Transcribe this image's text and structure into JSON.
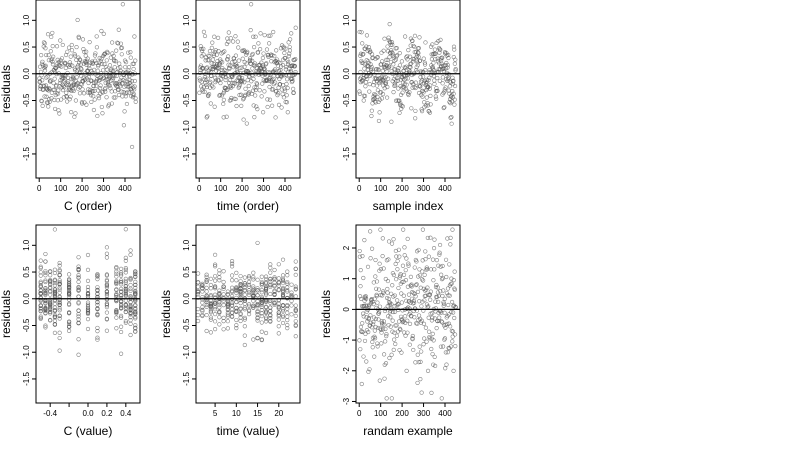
{
  "chart_data": [
    {
      "type": "scatter",
      "xlabel": "C (order)",
      "ylabel": "residuals",
      "xlim": [
        -15,
        470
      ],
      "ylim": [
        -1.95,
        1.38
      ],
      "xticks": [
        0,
        100,
        200,
        300,
        400
      ],
      "xtick_labels": [
        "0",
        "100",
        "200",
        "300",
        "400"
      ],
      "yticks": [
        1.0,
        0.5,
        0.0,
        -0.5,
        -1.0,
        -1.5
      ],
      "ytick_labels": [
        "1.0",
        "0.5",
        "0.0",
        "-0.5",
        "-1.0",
        "-1.5"
      ],
      "hline": 0,
      "marker": "open-circle",
      "n_points": 450,
      "generator": {
        "x_mode": "index",
        "x_min": 1,
        "x_max": 450,
        "y_sd": 0.32,
        "y_min": -1.85,
        "y_max": 1.3,
        "seed": 11,
        "cluster_y": false
      }
    },
    {
      "type": "scatter",
      "xlabel": "time (order)",
      "ylabel": "residuals",
      "xlim": [
        -15,
        470
      ],
      "ylim": [
        -1.95,
        1.38
      ],
      "xticks": [
        0,
        100,
        200,
        300,
        400
      ],
      "xtick_labels": [
        "0",
        "100",
        "200",
        "300",
        "400"
      ],
      "yticks": [
        1.0,
        0.5,
        0.0,
        -0.5,
        -1.0,
        -1.5
      ],
      "ytick_labels": [
        "1.0",
        "0.5",
        "0.0",
        "-0.5",
        "-1.0",
        "-1.5"
      ],
      "hline": 0,
      "marker": "open-circle",
      "n_points": 450,
      "generator": {
        "x_mode": "index",
        "x_min": 1,
        "x_max": 450,
        "y_sd": 0.32,
        "y_min": -1.85,
        "y_max": 1.3,
        "seed": 23,
        "cluster_y": false
      }
    },
    {
      "type": "scatter",
      "xlabel": "sample index",
      "ylabel": "residuals",
      "xlim": [
        -15,
        470
      ],
      "ylim": [
        -1.95,
        1.38
      ],
      "xticks": [
        0,
        100,
        200,
        300,
        400
      ],
      "xtick_labels": [
        "0",
        "100",
        "200",
        "300",
        "400"
      ],
      "yticks": [
        1.0,
        0.5,
        0.0,
        -0.5,
        -1.0,
        -1.5
      ],
      "ytick_labels": [
        "1.0",
        "0.5",
        "0.0",
        "-0.5",
        "-1.0",
        "-1.5"
      ],
      "hline": 0,
      "marker": "open-circle",
      "n_points": 450,
      "generator": {
        "x_mode": "index",
        "x_min": 1,
        "x_max": 450,
        "y_sd": 0.3,
        "y_min": -1.85,
        "y_max": 1.3,
        "seed": 37,
        "cluster_y": true
      }
    },
    {
      "type": "scatter",
      "xlabel": "C (value)",
      "ylabel": "residuals",
      "xlim": [
        -0.55,
        0.55
      ],
      "ylim": [
        -1.95,
        1.38
      ],
      "xticks": [
        -0.4,
        0.0,
        0.2,
        0.4
      ],
      "xtick_labels": [
        "-0.4",
        "0.0",
        "0.2",
        "0.4"
      ],
      "extra_xticks": [
        -0.2
      ],
      "yticks": [
        1.0,
        0.5,
        0.0,
        -0.5,
        -1.0,
        -1.5
      ],
      "ytick_labels": [
        "1.0",
        "0.5",
        "0.0",
        "-0.5",
        "-1.0",
        "-1.5"
      ],
      "hline": 0,
      "marker": "open-circle",
      "n_points": 450,
      "generator": {
        "x_mode": "discrete",
        "x_values": [
          -0.5,
          -0.45,
          -0.4,
          -0.35,
          -0.3,
          -0.2,
          -0.1,
          0.0,
          0.1,
          0.2,
          0.3,
          0.35,
          0.4,
          0.45,
          0.5
        ],
        "y_sd": 0.32,
        "y_min": -1.85,
        "y_max": 1.3,
        "seed": 41,
        "cluster_y": false
      }
    },
    {
      "type": "scatter",
      "xlabel": "time (value)",
      "ylabel": "residuals",
      "xlim": [
        0.5,
        25
      ],
      "ylim": [
        -1.95,
        1.38
      ],
      "xticks": [
        5,
        10,
        15,
        20
      ],
      "xtick_labels": [
        "5",
        "10",
        "15",
        "20"
      ],
      "yticks": [
        1.0,
        0.5,
        0.0,
        -0.5,
        -1.0,
        -1.5
      ],
      "ytick_labels": [
        "1.0",
        "0.5",
        "0.0",
        "-0.5",
        "-1.0",
        "-1.5"
      ],
      "hline": 0,
      "marker": "open-circle",
      "n_points": 450,
      "generator": {
        "x_mode": "discrete",
        "x_values": [
          1,
          2,
          3,
          4,
          5,
          6,
          7,
          8,
          9,
          10,
          11,
          12,
          13,
          14,
          15,
          16,
          17,
          18,
          19,
          20,
          21,
          22,
          23,
          24
        ],
        "y_sd": 0.3,
        "y_min": -1.85,
        "y_max": 1.3,
        "seed": 53,
        "cluster_y": false
      }
    },
    {
      "type": "scatter",
      "xlabel": "randam example",
      "ylabel": "residuals",
      "xlim": [
        -15,
        470
      ],
      "ylim": [
        -3.05,
        2.75
      ],
      "xticks": [
        0,
        100,
        200,
        300,
        400
      ],
      "xtick_labels": [
        "0",
        "100",
        "200",
        "300",
        "400"
      ],
      "yticks": [
        2,
        1,
        0,
        -1,
        -2,
        -3
      ],
      "ytick_labels": [
        "2",
        "1",
        "0",
        "-1",
        "-2",
        "-3"
      ],
      "hline": 0,
      "marker": "open-circle",
      "n_points": 450,
      "generator": {
        "x_mode": "index",
        "x_min": 1,
        "x_max": 450,
        "y_sd": 1.0,
        "y_min": -2.9,
        "y_max": 2.6,
        "seed": 67,
        "cluster_y": false
      }
    }
  ]
}
